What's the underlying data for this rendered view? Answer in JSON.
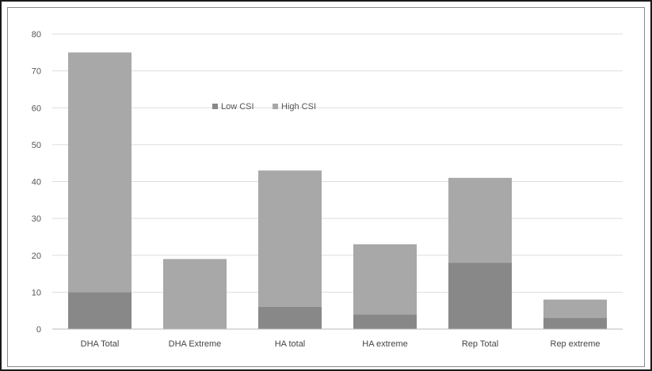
{
  "chart_data": {
    "type": "bar",
    "stacked": true,
    "categories": [
      "DHA Total",
      "DHA Extreme",
      "HA total",
      "HA extreme",
      "Rep Total",
      "Rep extreme"
    ],
    "series": [
      {
        "name": "Low CSI",
        "values": [
          10,
          0,
          6,
          4,
          18,
          3
        ]
      },
      {
        "name": "High CSI",
        "values": [
          65,
          19,
          37,
          19,
          23,
          5
        ]
      }
    ],
    "title": "",
    "xlabel": "",
    "ylabel": "",
    "ylim": [
      0,
      80
    ],
    "yticks": [
      0,
      10,
      20,
      30,
      40,
      50,
      60,
      70,
      80
    ],
    "grid": true,
    "legend_position": "top-left inside",
    "colors": {
      "Low CSI": "#888888",
      "High CSI": "#a8a8a8",
      "grid": "#dddddd",
      "axis": "#bbbbbb"
    }
  }
}
